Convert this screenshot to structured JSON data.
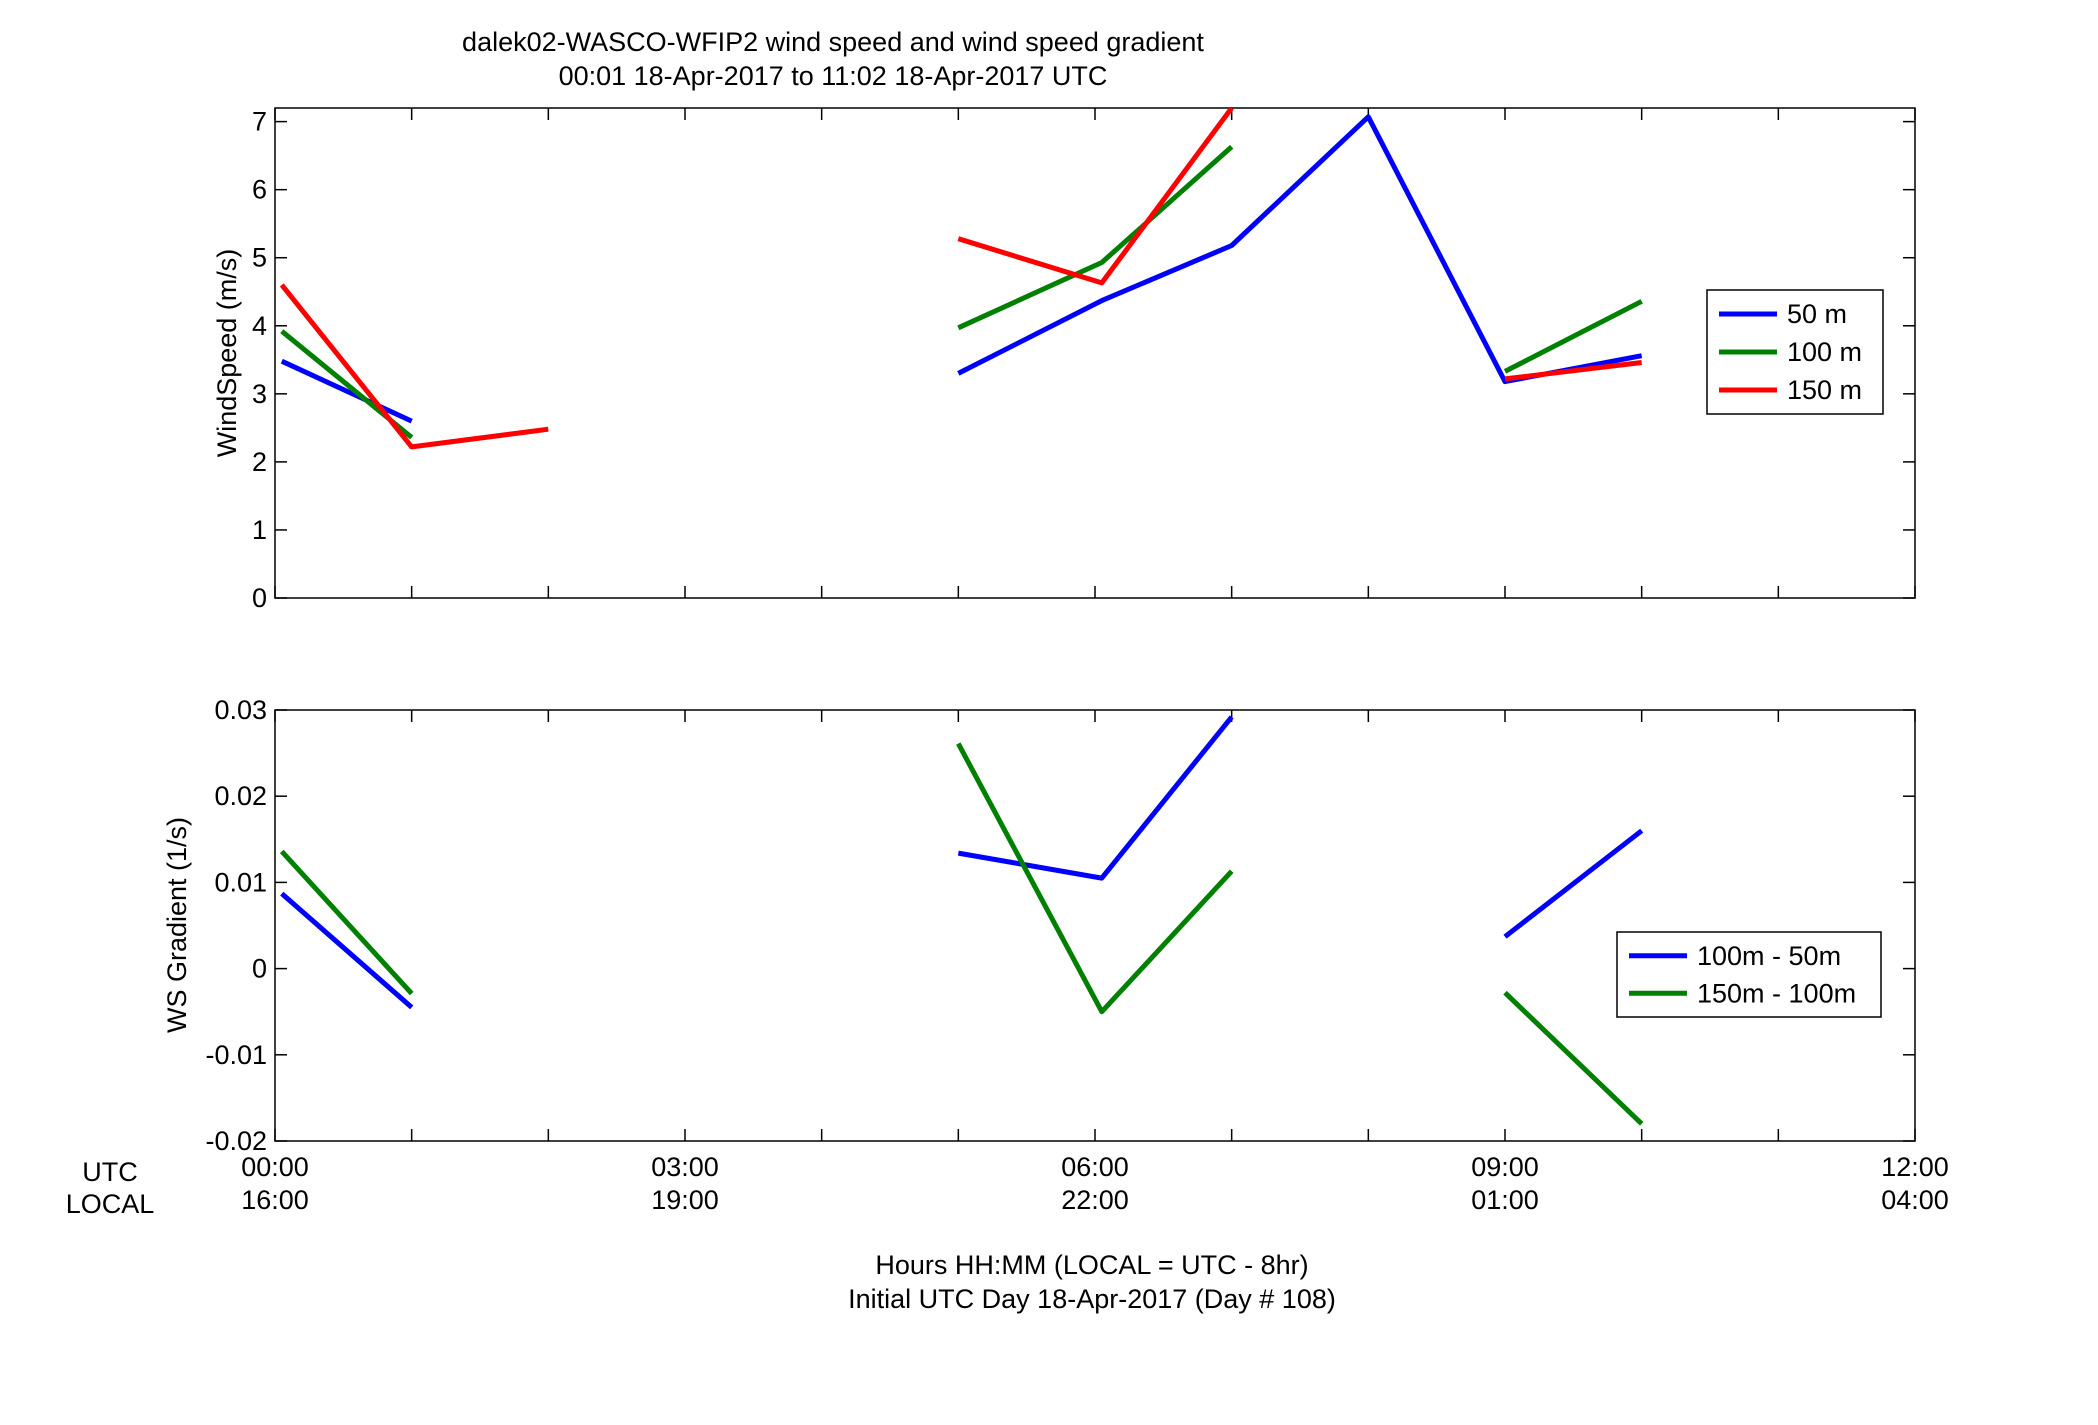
{
  "title_line1": "dalek02-WASCO-WFIP2  wind speed and wind speed gradient",
  "title_line2": "00:01 18-Apr-2017 to 11:02 18-Apr-2017  UTC",
  "xlabel_line1": "Hours HH:MM  (LOCAL = UTC - 8hr)",
  "xlabel_line2": "Initial UTC Day 18-Apr-2017 (Day # 108)",
  "row_label_utc": "UTC",
  "row_label_local": "LOCAL",
  "x_ticks_utc": [
    "00:00",
    "03:00",
    "06:00",
    "09:00",
    "12:00"
  ],
  "x_ticks_local": [
    "16:00",
    "19:00",
    "22:00",
    "01:00",
    "04:00"
  ],
  "chart_data": [
    {
      "type": "line",
      "ylabel": "WindSpeed (m/s)",
      "xlim": [
        0,
        12
      ],
      "ylim": [
        0,
        7.2
      ],
      "yticks": [
        0,
        1,
        2,
        3,
        4,
        5,
        6,
        7
      ],
      "ytick_labels": [
        "0",
        "1",
        "2",
        "3",
        "4",
        "5",
        "6",
        "7"
      ],
      "grid": false,
      "legend": "right",
      "series": [
        {
          "name": "50 m",
          "color": "#0000ff",
          "segments": [
            [
              [
                0.05,
                3.48
              ],
              [
                1.0,
                2.6
              ]
            ],
            [
              [
                5.0,
                3.3
              ],
              [
                6.05,
                4.37
              ],
              [
                7.0,
                5.18
              ],
              [
                8.0,
                7.07
              ],
              [
                9.0,
                3.18
              ],
              [
                10.0,
                3.56
              ]
            ]
          ]
        },
        {
          "name": "100 m",
          "color": "#008000",
          "segments": [
            [
              [
                0.05,
                3.92
              ],
              [
                1.0,
                2.36
              ]
            ],
            [
              [
                5.0,
                3.97
              ],
              [
                6.05,
                4.93
              ],
              [
                7.0,
                6.63
              ]
            ],
            [
              [
                9.0,
                3.33
              ],
              [
                10.0,
                4.36
              ]
            ]
          ]
        },
        {
          "name": "150 m",
          "color": "#ff0000",
          "segments": [
            [
              [
                0.05,
                4.6
              ],
              [
                1.0,
                2.22
              ],
              [
                2.0,
                2.48
              ]
            ],
            [
              [
                5.0,
                5.28
              ],
              [
                6.05,
                4.63
              ],
              [
                7.0,
                7.2
              ]
            ],
            [
              [
                9.0,
                3.22
              ],
              [
                10.0,
                3.46
              ]
            ]
          ]
        }
      ]
    },
    {
      "type": "line",
      "ylabel": "WS Gradient (1/s)",
      "xlim": [
        0,
        12
      ],
      "ylim": [
        -0.02,
        0.03
      ],
      "yticks": [
        -0.02,
        -0.01,
        0,
        0.01,
        0.02,
        0.03
      ],
      "ytick_labels": [
        "-0.02",
        "-0.01",
        "0",
        "0.01",
        "0.02",
        "0.03"
      ],
      "grid": false,
      "legend": "right",
      "series": [
        {
          "name": "100m - 50m",
          "color": "#0000ff",
          "segments": [
            [
              [
                0.05,
                0.0087
              ],
              [
                1.0,
                -0.0045
              ]
            ],
            [
              [
                5.0,
                0.0134
              ],
              [
                6.05,
                0.0105
              ],
              [
                7.0,
                0.0292
              ]
            ],
            [
              [
                9.0,
                0.0037
              ],
              [
                10.0,
                0.016
              ]
            ]
          ]
        },
        {
          "name": "150m - 100m",
          "color": "#008000",
          "segments": [
            [
              [
                0.05,
                0.0136
              ],
              [
                1.0,
                -0.0029
              ]
            ],
            [
              [
                5.0,
                0.0261
              ],
              [
                6.05,
                -0.005
              ],
              [
                7.0,
                0.0113
              ]
            ],
            [
              [
                9.0,
                -0.0028
              ],
              [
                10.0,
                -0.018
              ]
            ]
          ]
        }
      ]
    }
  ]
}
